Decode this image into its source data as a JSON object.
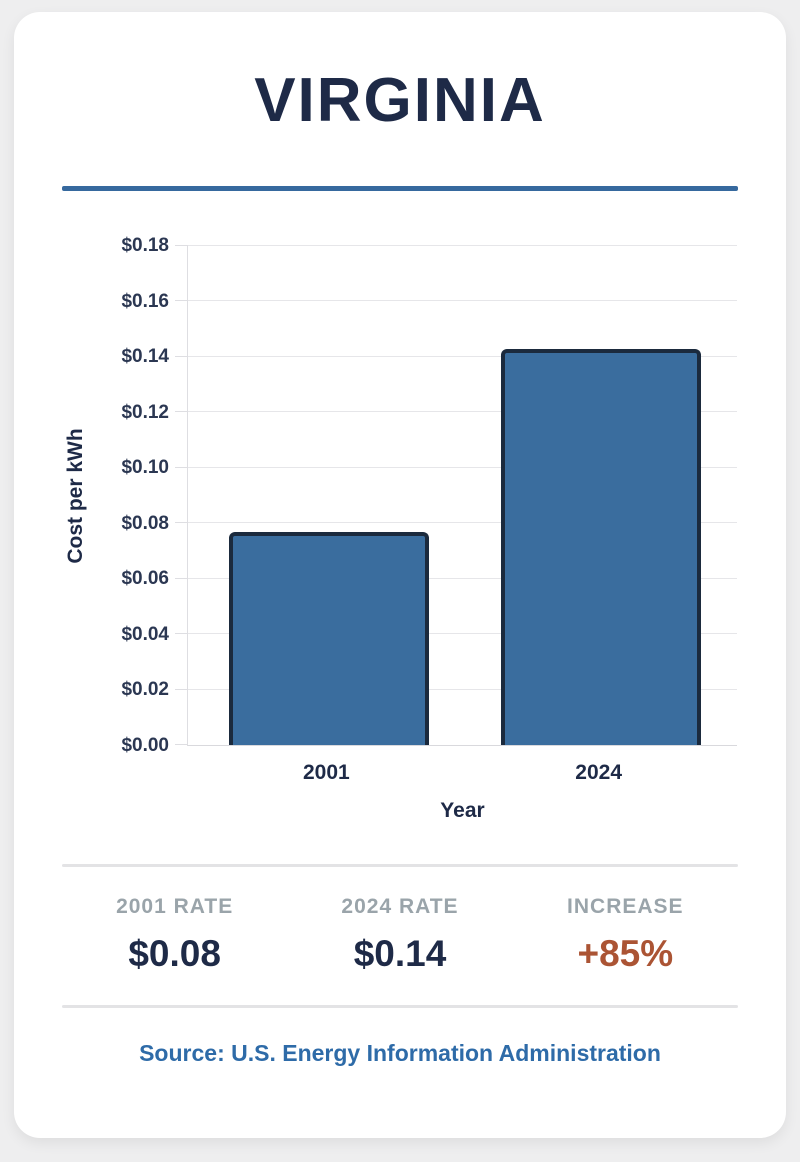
{
  "card": {
    "title": "VIRGINIA",
    "accent_color": "#36699e",
    "title_color": "#1e2a47",
    "background_color": "#ffffff",
    "page_background": "#eeeeef"
  },
  "chart_data": {
    "type": "bar",
    "title": "",
    "categories": [
      "2001",
      "2024"
    ],
    "values": [
      0.077,
      0.143
    ],
    "xlabel": "Year",
    "ylabel": "Cost per kWh",
    "ylim": [
      0,
      0.18
    ],
    "ytick_step": 0.02,
    "yticks": [
      "$0.00",
      "$0.02",
      "$0.04",
      "$0.06",
      "$0.08",
      "$0.10",
      "$0.12",
      "$0.14",
      "$0.16",
      "$0.18"
    ],
    "grid": true,
    "legend": "none",
    "bar_fill": "#3a6d9e",
    "bar_border": "#1b2a3d",
    "gridline_color": "#e6e6e9"
  },
  "stats": {
    "items": [
      {
        "label": "2001 RATE",
        "value": "$0.08",
        "color": "#1e2a47"
      },
      {
        "label": "2024 RATE",
        "value": "$0.14",
        "color": "#1e2a47"
      },
      {
        "label": "INCREASE",
        "value": "+85%",
        "color": "#ab5434"
      }
    ]
  },
  "source": {
    "text": "Source: U.S. Energy Information Administration"
  }
}
